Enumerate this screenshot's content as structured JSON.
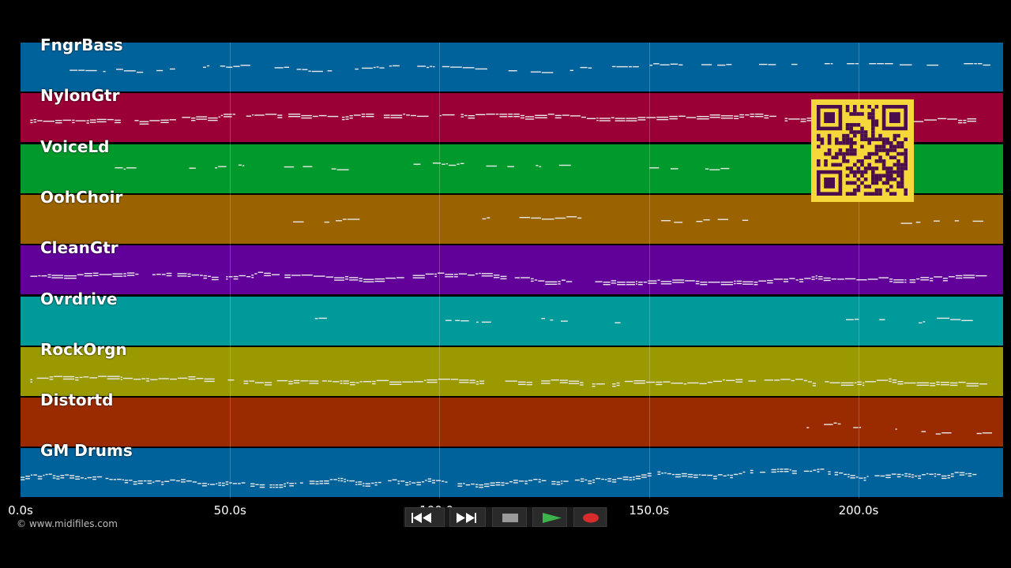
{
  "tracks": [
    {
      "name": "FngrBass",
      "color": "#00629a"
    },
    {
      "name": "NylonGtr",
      "color": "#9a0035"
    },
    {
      "name": "VoiceLd",
      "color": "#009a2c"
    },
    {
      "name": "OohChoir",
      "color": "#9a6300"
    },
    {
      "name": "CleanGtr",
      "color": "#62009a"
    },
    {
      "name": "Ovrdrive",
      "color": "#009a9a"
    },
    {
      "name": "RockOrgn",
      "color": "#9a9a00"
    },
    {
      "name": "Distortd",
      "color": "#9a2b00"
    },
    {
      "name": "GM Drums",
      "color": "#00629a"
    }
  ],
  "timeline": {
    "ticks": [
      "0.0s",
      "50.0s",
      "100.0s",
      "150.0s",
      "200.0s"
    ],
    "tick_seconds": [
      0,
      50,
      100,
      150,
      200
    ],
    "total_seconds": 234.5
  },
  "copyright": "© www.midifiles.com",
  "transport": {
    "rewind": "rewind-icon",
    "fast_forward": "fast-forward-icon",
    "stop": "stop-icon",
    "play": "play-icon",
    "record": "record-icon"
  },
  "colors": {
    "background": "#000000",
    "note": "#e8e8e8",
    "qr_background": "#f7d83a",
    "qr_foreground": "#4a0e4e",
    "play_green": "#3cb44b",
    "record_red": "#d62c2c"
  }
}
